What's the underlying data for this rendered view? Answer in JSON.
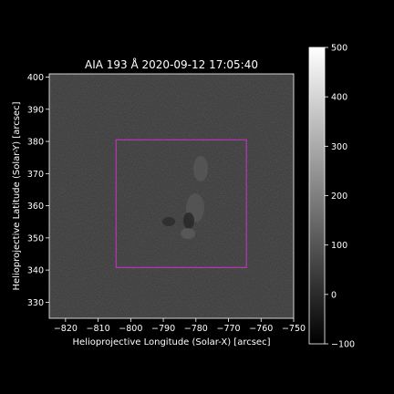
{
  "chart_data": {
    "type": "heatmap",
    "title": "AIA 193 Å 2020-09-12 17:05:40",
    "xlabel": "Helioprojective Longitude (Solar-X) [arcsec]",
    "ylabel": "Helioprojective Latitude (Solar-Y) [arcsec]",
    "xlim": [
      -825,
      -750
    ],
    "ylim": [
      325,
      401
    ],
    "x_ticks": [
      -820,
      -810,
      -800,
      -790,
      -780,
      -770,
      -760,
      -750
    ],
    "y_ticks": [
      330,
      340,
      350,
      360,
      370,
      380,
      390,
      400
    ],
    "x_tick_labels": [
      "−820",
      "−810",
      "−800",
      "−790",
      "−780",
      "−770",
      "−760",
      "−750"
    ],
    "y_tick_labels": [
      "330",
      "340",
      "350",
      "360",
      "370",
      "380",
      "390",
      "400"
    ],
    "colorbar": {
      "range": [
        -100,
        500
      ],
      "ticks": [
        -100,
        0,
        100,
        200,
        300,
        400,
        500
      ],
      "tick_labels": [
        "−100",
        "0",
        "100",
        "200",
        "300",
        "400",
        "500"
      ],
      "colormap": "gray"
    },
    "annotations": [
      {
        "type": "rectangle",
        "x_range": [
          -804.5,
          -764.5
        ],
        "y_range": [
          340.8,
          380.5
        ],
        "color": "#cc33cc"
      }
    ],
    "grid": false,
    "background_color": "#000000",
    "image_color": "#3e3e3e"
  }
}
